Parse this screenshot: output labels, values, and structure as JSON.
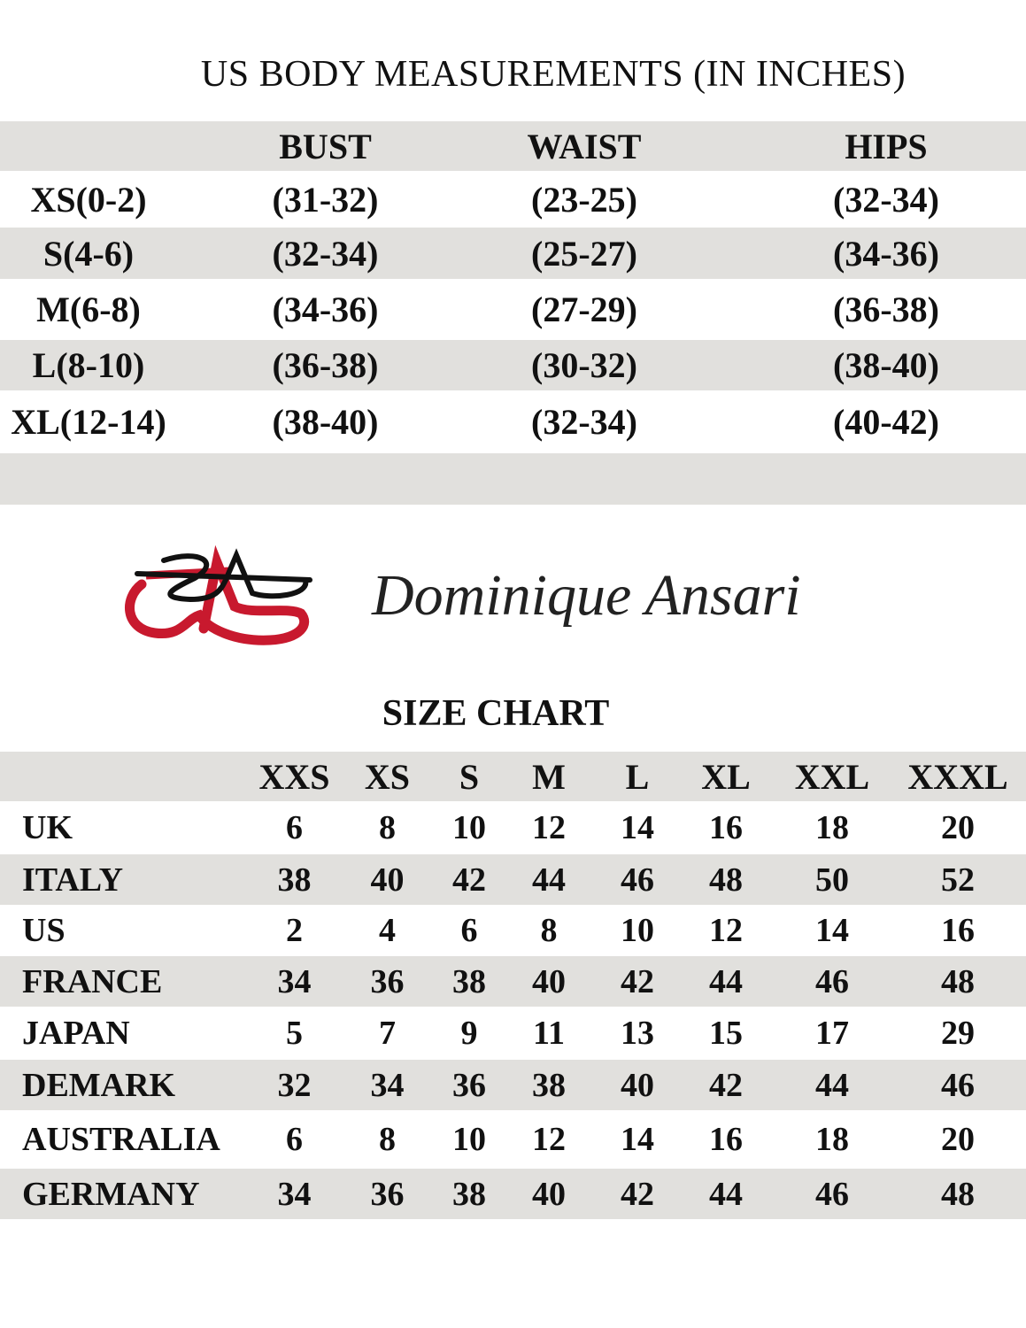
{
  "us_measurements": {
    "title": "US BODY MEASUREMENTS (IN INCHES)",
    "headers": [
      "",
      "BUST",
      "WAIST",
      "HIPS"
    ],
    "rows": [
      [
        "XS(0-2)",
        "(31-32)",
        "(23-25)",
        "(32-34)"
      ],
      [
        "S(4-6)",
        "(32-34)",
        "(25-27)",
        "(34-36)"
      ],
      [
        "M(6-8)",
        "(34-36)",
        "(27-29)",
        "(36-38)"
      ],
      [
        "L(8-10)",
        "(36-38)",
        "(30-32)",
        "(38-40)"
      ],
      [
        "XL(12-14)",
        "(38-40)",
        "(32-34)",
        "(40-42)"
      ]
    ]
  },
  "brand": {
    "name": "Dominique Ansari",
    "logo_text": "DA",
    "logo_colors": {
      "red": "#c8192e",
      "black": "#111111"
    }
  },
  "size_chart": {
    "title": "SIZE CHART",
    "headers": [
      "",
      "XXS",
      "XS",
      "S",
      "M",
      "L",
      "XL",
      "XXL",
      "XXXL"
    ],
    "rows": [
      [
        "UK",
        "6",
        "8",
        "10",
        "12",
        "14",
        "16",
        "18",
        "20"
      ],
      [
        "ITALY",
        "38",
        "40",
        "42",
        "44",
        "46",
        "48",
        "50",
        "52"
      ],
      [
        "US",
        "2",
        "4",
        "6",
        "8",
        "10",
        "12",
        "14",
        "16"
      ],
      [
        "FRANCE",
        "34",
        "36",
        "38",
        "40",
        "42",
        "44",
        "46",
        "48"
      ],
      [
        "JAPAN",
        "5",
        "7",
        "9",
        "11",
        "13",
        "15",
        "17",
        "29"
      ],
      [
        "DEMARK",
        "32",
        "34",
        "36",
        "38",
        "40",
        "42",
        "44",
        "46"
      ],
      [
        "AUSTRALIA",
        "6",
        "8",
        "10",
        "12",
        "14",
        "16",
        "18",
        "20"
      ],
      [
        "GERMANY",
        "34",
        "36",
        "38",
        "40",
        "42",
        "44",
        "46",
        "48"
      ]
    ]
  },
  "colors": {
    "band_gray": "#e1e0dd",
    "text": "#111111"
  }
}
